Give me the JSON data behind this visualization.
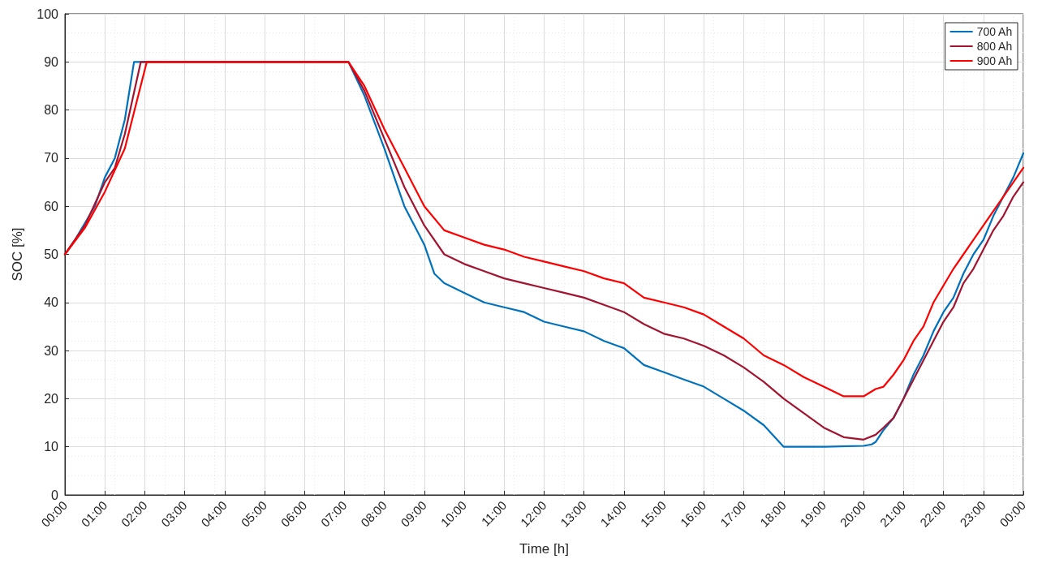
{
  "chart_data": {
    "type": "line",
    "xlabel": "Time [h]",
    "ylabel": "SOC [%]",
    "xlim": [
      0,
      24
    ],
    "xticks": [
      {
        "value": 0,
        "label": "00:00"
      },
      {
        "value": 1,
        "label": "01:00"
      },
      {
        "value": 2,
        "label": "02:00"
      },
      {
        "value": 3,
        "label": "03:00"
      },
      {
        "value": 4,
        "label": "04:00"
      },
      {
        "value": 5,
        "label": "05:00"
      },
      {
        "value": 6,
        "label": "06:00"
      },
      {
        "value": 7,
        "label": "07:00"
      },
      {
        "value": 8,
        "label": "08:00"
      },
      {
        "value": 9,
        "label": "09:00"
      },
      {
        "value": 10,
        "label": "10:00"
      },
      {
        "value": 11,
        "label": "11:00"
      },
      {
        "value": 12,
        "label": "12:00"
      },
      {
        "value": 13,
        "label": "13:00"
      },
      {
        "value": 14,
        "label": "14:00"
      },
      {
        "value": 15,
        "label": "15:00"
      },
      {
        "value": 16,
        "label": "16:00"
      },
      {
        "value": 17,
        "label": "17:00"
      },
      {
        "value": 18,
        "label": "18:00"
      },
      {
        "value": 19,
        "label": "19:00"
      },
      {
        "value": 20,
        "label": "20:00"
      },
      {
        "value": 21,
        "label": "21:00"
      },
      {
        "value": 22,
        "label": "22:00"
      },
      {
        "value": 23,
        "label": "23:00"
      },
      {
        "value": 24,
        "label": "00:00"
      }
    ],
    "ylim": [
      0,
      100
    ],
    "yticks": [
      0,
      10,
      20,
      30,
      40,
      50,
      60,
      70,
      80,
      90,
      100
    ],
    "grid": true,
    "legend": "top right",
    "marker": "none",
    "line_style": "solid",
    "series": [
      {
        "name": "700 Ah",
        "color": "#0072bd",
        "x": [
          0,
          0.25,
          0.5,
          0.75,
          1,
          1.25,
          1.5,
          1.73,
          7.1,
          7.5,
          8,
          8.5,
          9,
          9.25,
          9.5,
          10,
          10.5,
          11,
          11.5,
          12,
          12.5,
          13,
          13.5,
          14,
          14.5,
          15,
          15.5,
          16,
          16.5,
          17,
          17.5,
          18,
          19,
          20,
          20.2,
          20.3,
          20.5,
          20.75,
          21,
          21.25,
          21.5,
          21.75,
          22,
          22.25,
          22.5,
          22.75,
          23,
          23.25,
          23.5,
          23.75,
          24
        ],
        "values": [
          50,
          53,
          56.5,
          60,
          66,
          70,
          78,
          90,
          90,
          83,
          72,
          60,
          52,
          46,
          44,
          42,
          40,
          39,
          38,
          36,
          35,
          34,
          32,
          30.5,
          27,
          25.5,
          24,
          22.5,
          20,
          17.5,
          14.5,
          10,
          10,
          10.2,
          10.5,
          11,
          13.5,
          16,
          20,
          25,
          29,
          34,
          38,
          41,
          46,
          50,
          53,
          58,
          62,
          66,
          71
        ]
      },
      {
        "name": "800 Ah",
        "color": "#a2142f",
        "x": [
          0,
          0.5,
          1,
          1.25,
          1.5,
          1.9,
          7.1,
          7.5,
          8,
          8.5,
          9,
          9.5,
          10,
          10.5,
          11,
          11.5,
          12,
          12.5,
          13,
          13.5,
          14,
          14.5,
          15,
          15.5,
          16,
          16.5,
          17,
          17.5,
          18,
          18.5,
          19,
          19.5,
          20,
          20.3,
          20.5,
          20.75,
          21,
          21.25,
          21.5,
          21.75,
          22,
          22.25,
          22.5,
          22.75,
          23,
          23.25,
          23.5,
          23.75,
          24
        ],
        "values": [
          50,
          56,
          65,
          68,
          75,
          90,
          90,
          84,
          74,
          64,
          56,
          50,
          48,
          46.5,
          45,
          44,
          43,
          42,
          41,
          39.5,
          38,
          35.5,
          33.5,
          32.5,
          31,
          29,
          26.5,
          23.5,
          20,
          17,
          14,
          12,
          11.5,
          12.5,
          14,
          16,
          20,
          24,
          28,
          32,
          36,
          39,
          44,
          47,
          51,
          55,
          58,
          62,
          65
        ]
      },
      {
        "name": "900 Ah",
        "color": "#ff0000",
        "x": [
          0,
          0.5,
          1,
          1.5,
          2.05,
          7.1,
          7.5,
          8,
          8.5,
          9,
          9.5,
          10,
          10.5,
          11,
          11.5,
          12,
          12.5,
          13,
          13.5,
          14,
          14.5,
          15,
          15.5,
          16,
          16.5,
          17,
          17.5,
          18,
          18.5,
          19,
          19.5,
          20,
          20.3,
          20.5,
          20.75,
          21,
          21.25,
          21.5,
          21.75,
          22,
          22.25,
          22.5,
          22.75,
          23,
          23.25,
          23.5,
          23.75,
          24
        ],
        "values": [
          50,
          55.5,
          63,
          72,
          90,
          90,
          85,
          76,
          68,
          60,
          55,
          53.5,
          52,
          51,
          49.5,
          48.5,
          47.5,
          46.5,
          45,
          44,
          41,
          40,
          39,
          37.5,
          35,
          32.5,
          29,
          27,
          24.5,
          22.5,
          20.5,
          20.5,
          22,
          22.5,
          25,
          28,
          32,
          35,
          40,
          43.5,
          47,
          50,
          53,
          56,
          59,
          62,
          65,
          68
        ]
      }
    ]
  }
}
